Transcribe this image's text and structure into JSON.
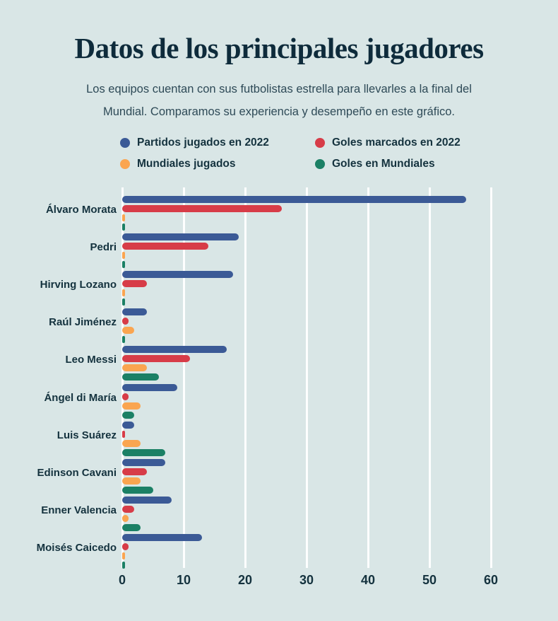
{
  "page": {
    "background": "#d9e6e6"
  },
  "header": {
    "title": "Datos de los principales jugadores",
    "subtitle_line1": "Los equipos cuentan con sus futbolistas estrella para llevarles a la final del",
    "subtitle_line2": "Mundial. Comparamos su experiencia y desempeño en este gráfico."
  },
  "legend": {
    "items": [
      {
        "label": "Partidos jugados en 2022",
        "color": "#3b5a96",
        "icon": "legend-dot-blue"
      },
      {
        "label": "Goles marcados en 2022",
        "color": "#d73c48",
        "icon": "legend-dot-red"
      },
      {
        "label": "Mundiales jugados",
        "color": "#faa550",
        "icon": "legend-dot-orange"
      },
      {
        "label": "Goles en Mundiales",
        "color": "#1b8065",
        "icon": "legend-dot-green"
      }
    ]
  },
  "chart_data": {
    "type": "bar",
    "orientation": "horizontal",
    "title": "Datos de los principales jugadores",
    "categories": [
      "Álvaro Morata",
      "Pedri",
      "Hirving Lozano",
      "Raúl Jiménez",
      "Leo Messi",
      "Ángel di María",
      "Luis Suárez",
      "Edinson Cavani",
      "Enner Valencia",
      "Moisés Caicedo"
    ],
    "series": [
      {
        "name": "Partidos jugados en 2022",
        "color": "#3b5a96",
        "values": [
          56,
          19,
          18,
          4,
          17,
          9,
          2,
          7,
          8,
          13
        ]
      },
      {
        "name": "Goles marcados en 2022",
        "color": "#d73c48",
        "values": [
          26,
          14,
          4,
          1,
          11,
          1,
          0,
          4,
          2,
          1
        ]
      },
      {
        "name": "Mundiales jugados",
        "color": "#faa550",
        "values": [
          0,
          0,
          0,
          2,
          4,
          3,
          3,
          3,
          1,
          0
        ]
      },
      {
        "name": "Goles en Mundiales",
        "color": "#1b8065",
        "values": [
          0,
          0,
          0,
          0,
          6,
          2,
          7,
          5,
          3,
          0
        ]
      }
    ],
    "xlabel": "",
    "ylabel": "",
    "xlim": [
      0,
      60
    ],
    "x_ticks": [
      0,
      10,
      20,
      30,
      40,
      50,
      60
    ],
    "grid": true,
    "gridline_color": "#ffffff",
    "legend_position": "top",
    "text_color": "#14323e"
  }
}
